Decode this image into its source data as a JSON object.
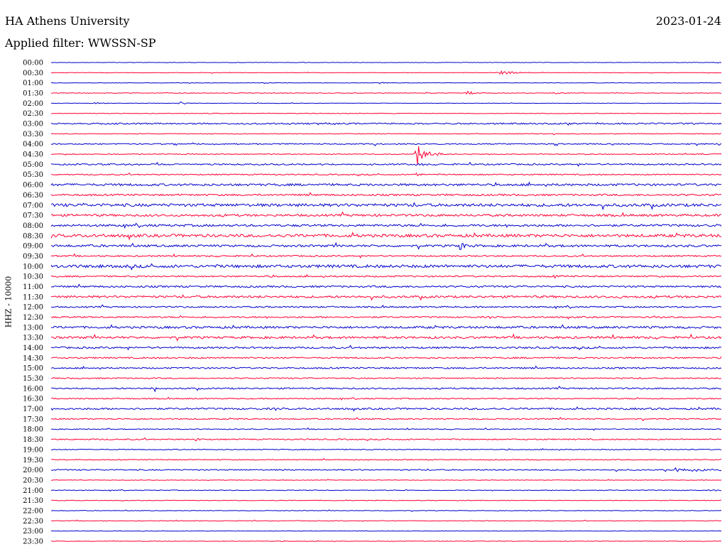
{
  "header": {
    "station": "HA Athens University",
    "date": "2023-01-24",
    "filter": "Applied filter: WWSSN-SP"
  },
  "chart_data": {
    "type": "line",
    "title": "HA Athens University",
    "subtitle": "Applied filter: WWSSN-SP",
    "ylabel": "HHZ - 10000",
    "date": "2023-01-24",
    "row_labels": [
      "00:00",
      "00:30",
      "01:00",
      "01:30",
      "02:00",
      "02:30",
      "03:00",
      "03:30",
      "04:00",
      "04:30",
      "05:00",
      "05:30",
      "06:00",
      "06:30",
      "07:00",
      "07:30",
      "08:00",
      "08:30",
      "09:00",
      "09:30",
      "10:00",
      "10:30",
      "11:00",
      "11:30",
      "12:00",
      "12:30",
      "13:00",
      "13:30",
      "14:00",
      "14:30",
      "15:00",
      "15:30",
      "16:00",
      "16:30",
      "17:00",
      "17:30",
      "18:00",
      "18:30",
      "19:00",
      "19:30",
      "20:00",
      "20:30",
      "21:00",
      "21:30",
      "22:00",
      "22:30",
      "23:00",
      "23:30"
    ],
    "series_colors": [
      "#0000cc",
      "#ff0033"
    ],
    "noise_level": [
      0.3,
      0.3,
      0.3,
      0.4,
      0.3,
      0.4,
      1.0,
      0.5,
      0.8,
      0.6,
      1.0,
      0.8,
      1.5,
      1.2,
      2.0,
      1.5,
      1.5,
      2.0,
      1.5,
      1.0,
      2.0,
      1.0,
      1.2,
      1.5,
      1.0,
      1.0,
      1.5,
      1.5,
      1.2,
      1.0,
      1.0,
      0.8,
      1.0,
      0.8,
      1.2,
      0.8,
      0.6,
      0.8,
      0.6,
      0.6,
      0.8,
      0.4,
      0.5,
      0.4,
      0.4,
      0.4,
      0.3,
      0.4
    ],
    "events": [
      {
        "row": 1,
        "x": 0.67,
        "amp": 3,
        "width": 0.025
      },
      {
        "row": 2,
        "x": 0.49,
        "amp": 1.5,
        "width": 0.008
      },
      {
        "row": 3,
        "x": 0.62,
        "amp": 2.5,
        "width": 0.02
      },
      {
        "row": 3,
        "x": 0.75,
        "amp": 2.5,
        "width": 0.01
      },
      {
        "row": 4,
        "x": 0.06,
        "amp": 3,
        "width": 0.008
      },
      {
        "row": 4,
        "x": 0.19,
        "amp": 3.5,
        "width": 0.008
      },
      {
        "row": 9,
        "x": 0.545,
        "amp": 18,
        "width": 0.015
      },
      {
        "row": 10,
        "x": 0.545,
        "amp": 6,
        "width": 0.005
      },
      {
        "row": 11,
        "x": 0.545,
        "amp": 4,
        "width": 0.004
      },
      {
        "row": 16,
        "x": 0.98,
        "amp": 4,
        "width": 0.008
      },
      {
        "row": 18,
        "x": 0.61,
        "amp": 7,
        "width": 0.008
      },
      {
        "row": 20,
        "x": 0.07,
        "amp": 3,
        "width": 0.008
      },
      {
        "row": 21,
        "x": 0.75,
        "amp": 3,
        "width": 0.008
      },
      {
        "row": 23,
        "x": 0.85,
        "amp": 3,
        "width": 0.008
      },
      {
        "row": 25,
        "x": 0.9,
        "amp": 3,
        "width": 0.008
      },
      {
        "row": 32,
        "x": 0.15,
        "amp": 3.5,
        "width": 0.008
      },
      {
        "row": 37,
        "x": 0.215,
        "amp": 4,
        "width": 0.006
      },
      {
        "row": 40,
        "x": 0.93,
        "amp": 3,
        "width": 0.04
      }
    ]
  }
}
